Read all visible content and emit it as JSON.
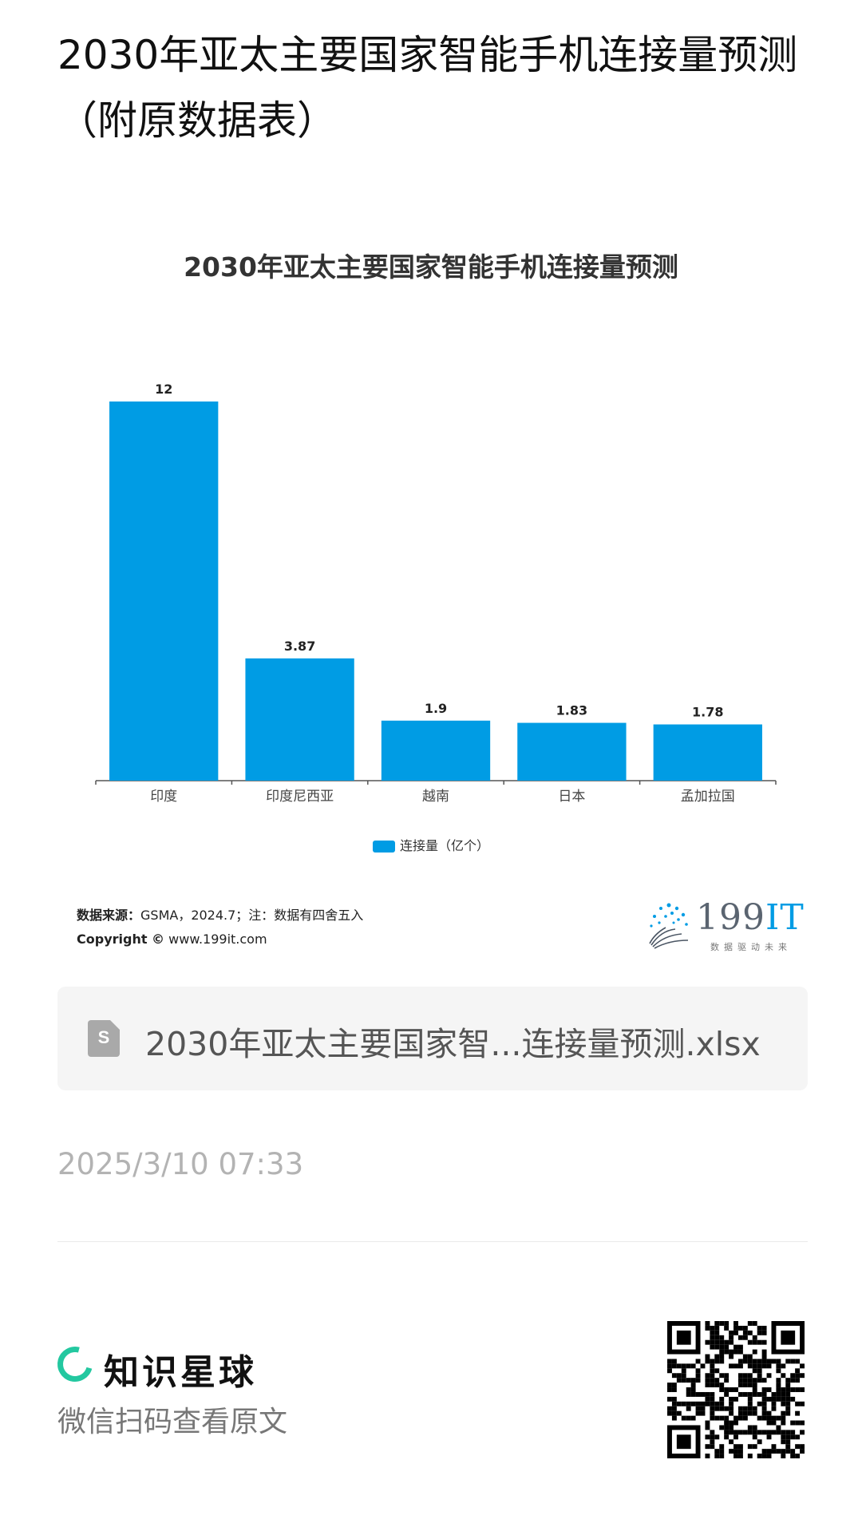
{
  "post": {
    "title": "2030年亚太主要国家智能手机连接量预测（附原数据表）"
  },
  "chart_data": {
    "type": "bar",
    "title": "2030年亚太主要国家智能手机连接量预测",
    "categories": [
      "印度",
      "印度尼西亚",
      "越南",
      "日本",
      "孟加拉国"
    ],
    "series": [
      {
        "name": "连接量（亿个）",
        "values": [
          12,
          3.87,
          1.9,
          1.83,
          1.78
        ]
      }
    ],
    "value_labels": [
      "12",
      "3.87",
      "1.9",
      "1.83",
      "1.78"
    ],
    "ylim": [
      0,
      12
    ],
    "grid": false,
    "legend_position": "bottom",
    "color": "#009ce4"
  },
  "source": {
    "label": "数据来源：",
    "text": "GSMA，2024.7；注：数据有四舍五入",
    "copyright_label": "Copyright ©",
    "copyright_site": "www.199it.com"
  },
  "brand": {
    "name_digits": "199",
    "name_it": "IT",
    "tagline": "数据驱动未来"
  },
  "attachment": {
    "icon": "spreadsheet-file-icon",
    "icon_letter": "S",
    "file_name": "2030年亚太主要国家智...连接量预测.xlsx"
  },
  "timestamp": "2025/3/10 07:33",
  "footer": {
    "app_name": "知识星球",
    "scan_hint": "微信扫码查看原文",
    "accent_color": "#23c8a0"
  }
}
